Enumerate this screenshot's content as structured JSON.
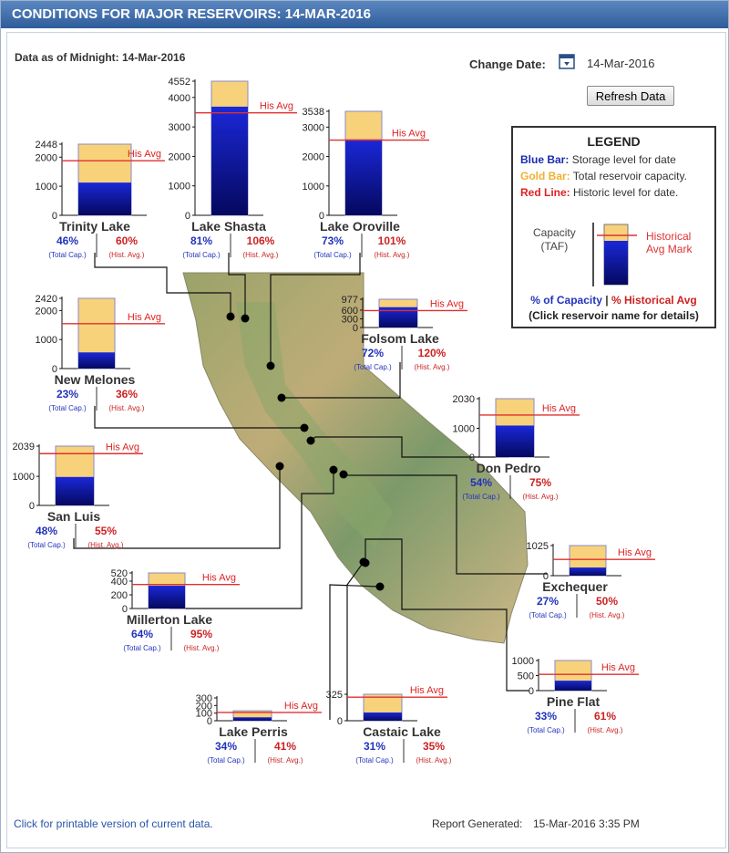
{
  "header": {
    "title": "CONDITIONS FOR MAJOR RESERVOIRS: 14-MAR-2016"
  },
  "as_of": "Data as of Midnight: 14-Mar-2016",
  "controls": {
    "change_date_label": "Change Date:",
    "date_value": "14-Mar-2016",
    "refresh_label": "Refresh Data"
  },
  "legend": {
    "title": "LEGEND",
    "blue_key": "Blue Bar:",
    "blue_text": "Storage level for date",
    "gold_key": "Gold Bar:",
    "gold_text": "Total reservoir capacity.",
    "red_key": "Red Line:",
    "red_text": "Historic level for date.",
    "capacity_label": "Capacity",
    "taf_label": "(TAF)",
    "historical_label": "Historical",
    "avg_mark_label": "Avg Mark",
    "pct_capacity": "% of Capacity",
    "separator": "|",
    "pct_hist": "% Historical Avg",
    "click_note": "(Click reservoir name for details)"
  },
  "colors": {
    "storage": "#0a14a8",
    "capacity": "#f8d27a",
    "historic": "#e03030",
    "cap_text": "#2233bb",
    "hist_text": "#cc2222"
  },
  "chart_data": {
    "type": "bar",
    "his_avg_label": "His Avg",
    "total_cap_label": "(Total Cap.)",
    "hist_avg_label": "(Hist. Avg.)",
    "reservoirs": [
      {
        "name": "Trinity Lake",
        "capacity": 2448,
        "storage": 1126,
        "historical": 1877,
        "pct_capacity": "46%",
        "pct_hist": "60%",
        "ticks": [
          "2448",
          "2000",
          "1000",
          "0"
        ],
        "tick_values": [
          2448,
          2000,
          1000,
          0
        ]
      },
      {
        "name": "Lake Shasta",
        "capacity": 4552,
        "storage": 3687,
        "historical": 3478,
        "pct_capacity": "81%",
        "pct_hist": "106%",
        "ticks": [
          "4552",
          "4000",
          "3000",
          "2000",
          "1000",
          "0"
        ],
        "tick_values": [
          4552,
          4000,
          3000,
          2000,
          1000,
          0
        ]
      },
      {
        "name": "Lake Oroville",
        "capacity": 3538,
        "storage": 2583,
        "historical": 2557,
        "pct_capacity": "73%",
        "pct_hist": "101%",
        "ticks": [
          "3538",
          "3000",
          "2000",
          "1000",
          "0"
        ],
        "tick_values": [
          3538,
          3000,
          2000,
          1000,
          0
        ]
      },
      {
        "name": "New Melones",
        "capacity": 2420,
        "storage": 557,
        "historical": 1547,
        "pct_capacity": "23%",
        "pct_hist": "36%",
        "ticks": [
          "2420",
          "2000",
          "1000",
          "0"
        ],
        "tick_values": [
          2420,
          2000,
          1000,
          0
        ]
      },
      {
        "name": "Folsom Lake",
        "capacity": 977,
        "storage": 703,
        "historical": 586,
        "pct_capacity": "72%",
        "pct_hist": "120%",
        "ticks": [
          "977",
          "600",
          "300",
          "0"
        ],
        "tick_values": [
          977,
          600,
          300,
          0
        ]
      },
      {
        "name": "Don Pedro",
        "capacity": 2030,
        "storage": 1096,
        "historical": 1462,
        "pct_capacity": "54%",
        "pct_hist": "75%",
        "ticks": [
          "2030",
          "1000",
          "0"
        ],
        "tick_values": [
          2030,
          1000,
          0
        ]
      },
      {
        "name": "San Luis",
        "capacity": 2039,
        "storage": 979,
        "historical": 1780,
        "pct_capacity": "48%",
        "pct_hist": "55%",
        "ticks": [
          "2039",
          "1000",
          "0"
        ],
        "tick_values": [
          2039,
          1000,
          0
        ]
      },
      {
        "name": "Exchequer",
        "capacity": 1025,
        "storage": 277,
        "historical": 554,
        "pct_capacity": "27%",
        "pct_hist": "50%",
        "ticks": [
          "1025",
          "0"
        ],
        "tick_values": [
          1025,
          0
        ]
      },
      {
        "name": "Millerton Lake",
        "capacity": 520,
        "storage": 333,
        "historical": 351,
        "pct_capacity": "64%",
        "pct_hist": "95%",
        "ticks": [
          "520",
          "400",
          "200",
          "0"
        ],
        "tick_values": [
          520,
          400,
          200,
          0
        ]
      },
      {
        "name": "Pine Flat",
        "capacity": 1000,
        "storage": 330,
        "historical": 541,
        "pct_capacity": "33%",
        "pct_hist": "61%",
        "ticks": [
          "1000",
          "500",
          "0"
        ],
        "tick_values": [
          1000,
          500,
          0
        ]
      },
      {
        "name": "Lake Perris",
        "capacity": 131,
        "storage": 45,
        "historical": 109,
        "pct_capacity": "34%",
        "pct_hist": "41%",
        "ticks": [
          "300",
          "200",
          "100",
          "0"
        ],
        "tick_values": [
          300,
          200,
          100,
          0
        ]
      },
      {
        "name": "Castaic Lake",
        "capacity": 325,
        "storage": 101,
        "historical": 289,
        "pct_capacity": "31%",
        "pct_hist": "35%",
        "ticks": [
          "325",
          "0"
        ],
        "tick_values": [
          325,
          0
        ]
      }
    ]
  },
  "footer": {
    "print_link": "Click for printable version of current data.",
    "report_label": "Report Generated:",
    "report_time": "15-Mar-2016 3:35 PM"
  }
}
